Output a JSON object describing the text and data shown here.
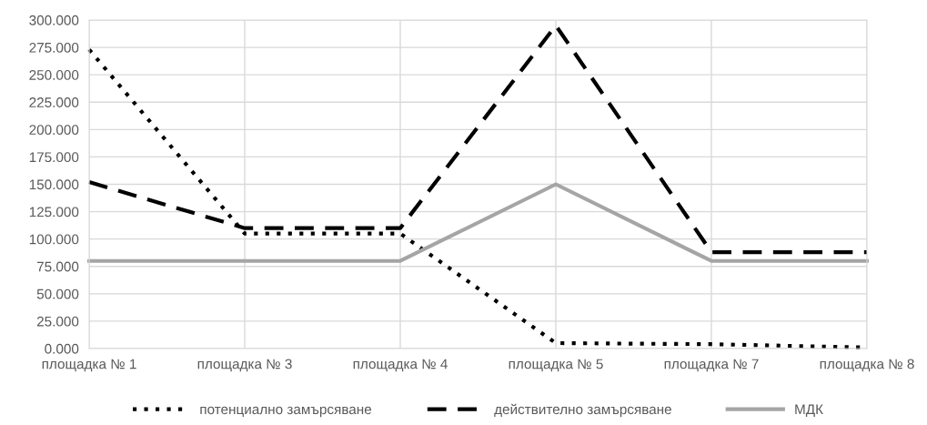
{
  "chart_data": {
    "type": "line",
    "categories": [
      "площадка № 1",
      "площадка № 3",
      "площадка № 4",
      "площадка № 5",
      "площадка № 7",
      "площадка № 8"
    ],
    "series": [
      {
        "name": "потенциално замърсяване",
        "color": "#000000",
        "line_style": "dotted",
        "values": [
          273,
          105,
          105,
          5,
          4,
          1
        ]
      },
      {
        "name": "действително замърсяване",
        "color": "#000000",
        "line_style": "dashed",
        "values": [
          152,
          110,
          110,
          295,
          88,
          88
        ]
      },
      {
        "name": "МДК",
        "color": "#a5a5a5",
        "line_style": "solid",
        "values": [
          80,
          80,
          80,
          150,
          80,
          80
        ]
      }
    ],
    "ylim": [
      0,
      300
    ],
    "yticks": [
      {
        "value": 0,
        "label": "0.000"
      },
      {
        "value": 25,
        "label": "25.000"
      },
      {
        "value": 50,
        "label": "50.000"
      },
      {
        "value": 75,
        "label": "75.000"
      },
      {
        "value": 100,
        "label": "100.000"
      },
      {
        "value": 125,
        "label": "125.000"
      },
      {
        "value": 150,
        "label": "150.000"
      },
      {
        "value": 175,
        "label": "175.000"
      },
      {
        "value": 200,
        "label": "200.000"
      },
      {
        "value": 225,
        "label": "225.000"
      },
      {
        "value": 250,
        "label": "250.000"
      },
      {
        "value": 275,
        "label": "275.000"
      },
      {
        "value": 300,
        "label": "300.000"
      }
    ],
    "grid": true,
    "legend": "bottom"
  }
}
